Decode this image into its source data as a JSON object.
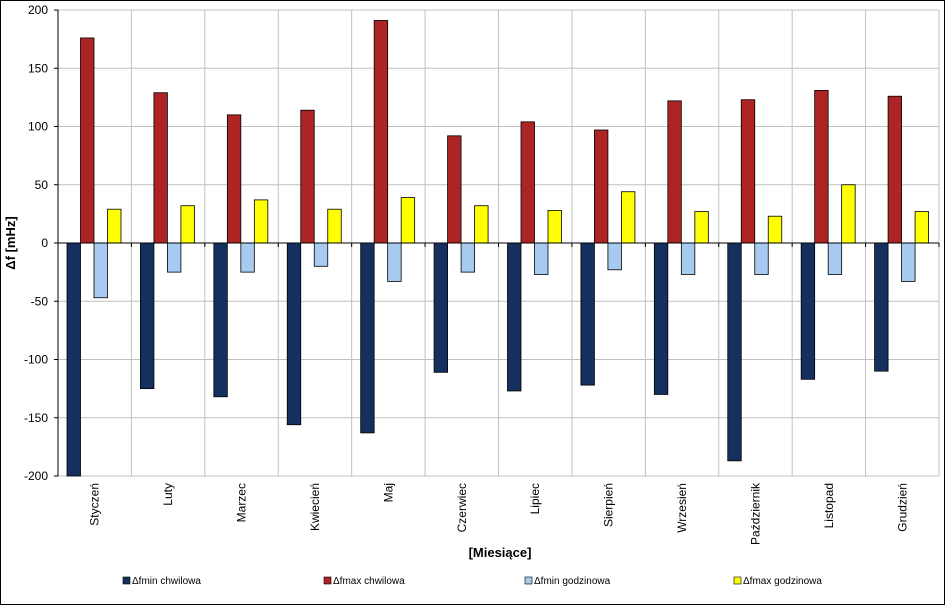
{
  "chart_data": {
    "type": "bar",
    "xlabel": "[Miesiące]",
    "ylabel": "Δf [mHz]",
    "ylim": [
      -200,
      200
    ],
    "yticks": [
      -200,
      -150,
      -100,
      -50,
      0,
      50,
      100,
      150,
      200
    ],
    "grid": true,
    "legend_position": "bottom",
    "categories": [
      "Styczeń",
      "Luty",
      "Marzec",
      "Kwiecień",
      "Maj",
      "Czerwiec",
      "Lipiec",
      "Sierpień",
      "Wrzesień",
      "Październik",
      "Listopad",
      "Grudzień"
    ],
    "series": [
      {
        "name": "Δfmin chwilowa",
        "color": "#15305f",
        "values": [
          -200,
          -125,
          -132,
          -156,
          -163,
          -111,
          -127,
          -122,
          -130,
          -187,
          -117,
          -110
        ]
      },
      {
        "name": "Δfmax chwilowa",
        "color": "#ad2424",
        "values": [
          176,
          129,
          110,
          114,
          191,
          92,
          104,
          97,
          122,
          123,
          131,
          126
        ]
      },
      {
        "name": "Δfmin godzinowa",
        "color": "#a6caf0",
        "values": [
          -47,
          -25,
          -25,
          -20,
          -33,
          -25,
          -27,
          -23,
          -27,
          -27,
          -27,
          -33
        ]
      },
      {
        "name": "Δfmax godzinowa",
        "color": "#ffff00",
        "values": [
          29,
          32,
          37,
          29,
          39,
          32,
          28,
          44,
          27,
          23,
          50,
          27
        ]
      }
    ]
  }
}
